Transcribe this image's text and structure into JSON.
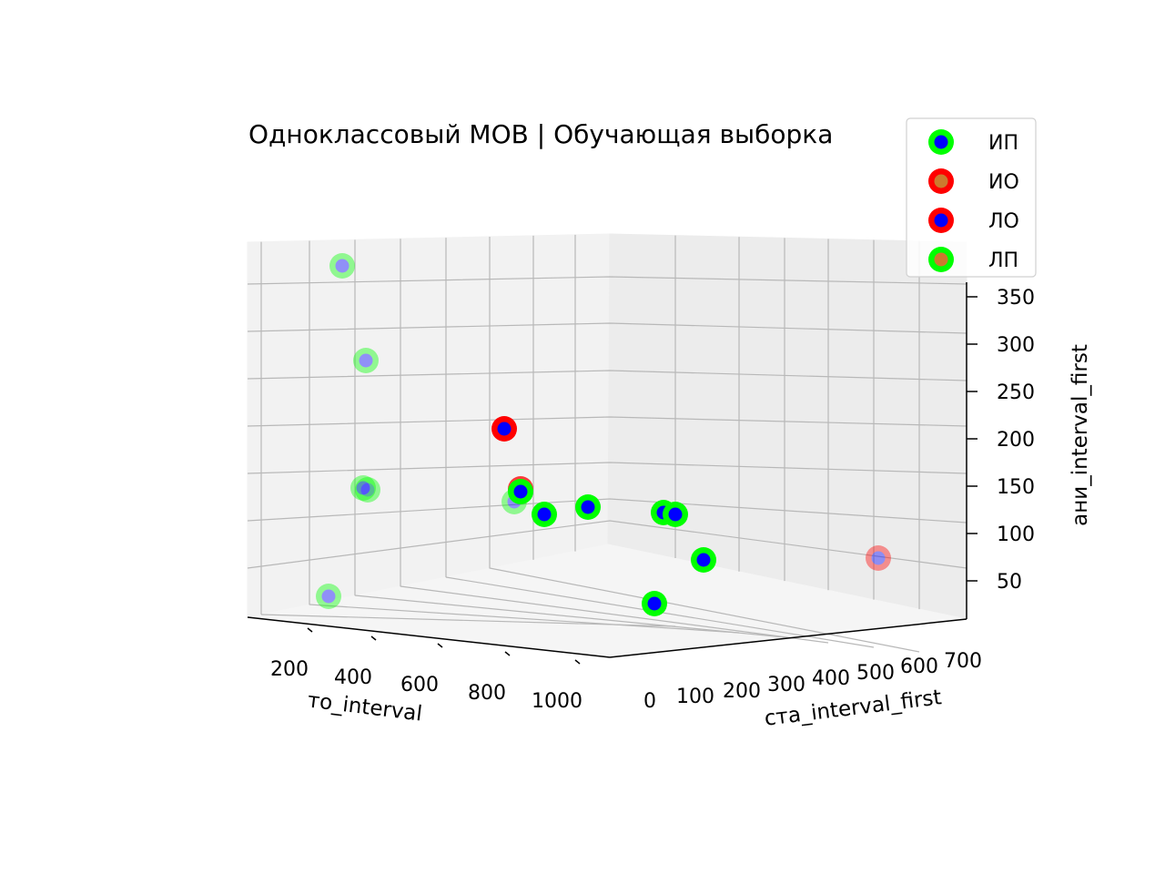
{
  "chart_data": {
    "type": "scatter",
    "title": "Одноклассовый МОВ | Обучающая выборка",
    "xlabel": "то_interval",
    "ylabel": "ста_interval_first",
    "zlabel": "ани_interval_first",
    "x_ticks": [
      "200",
      "400",
      "600",
      "800",
      "1000"
    ],
    "y_ticks": [
      "0",
      "100",
      "200",
      "300",
      "400",
      "500",
      "600",
      "700"
    ],
    "z_ticks": [
      "50",
      "100",
      "150",
      "200",
      "250",
      "300",
      "350"
    ],
    "grid": true,
    "legend_position": "top-right",
    "legend": [
      {
        "name": "ИП",
        "edge": "#00ff00",
        "face": "#0000ff"
      },
      {
        "name": "ИО",
        "edge": "#ff0000",
        "face": "#cc7a2e"
      },
      {
        "name": "ЛО",
        "edge": "#ff0000",
        "face": "#0000ff"
      },
      {
        "name": "ЛП",
        "edge": "#00ff00",
        "face": "#cc7a2e"
      }
    ],
    "points": [
      {
        "class": "ИП",
        "depth": "back"
      },
      {
        "class": "ИП",
        "depth": "back"
      },
      {
        "class": "ИП",
        "depth": "back"
      },
      {
        "class": "ИП",
        "depth": "back"
      },
      {
        "class": "ИП",
        "depth": "back"
      },
      {
        "class": "ИП",
        "depth": "back"
      },
      {
        "class": "ЛО",
        "depth": "front"
      },
      {
        "class": "ЛО",
        "depth": "mid"
      },
      {
        "class": "ИП",
        "depth": "front"
      },
      {
        "class": "ИП",
        "depth": "front"
      },
      {
        "class": "ИП",
        "depth": "front"
      },
      {
        "class": "ИП",
        "depth": "front"
      },
      {
        "class": "ИП",
        "depth": "front"
      },
      {
        "class": "ИП",
        "depth": "front"
      },
      {
        "class": "ИП",
        "depth": "front"
      },
      {
        "class": "ЛО",
        "depth": "back"
      }
    ]
  }
}
